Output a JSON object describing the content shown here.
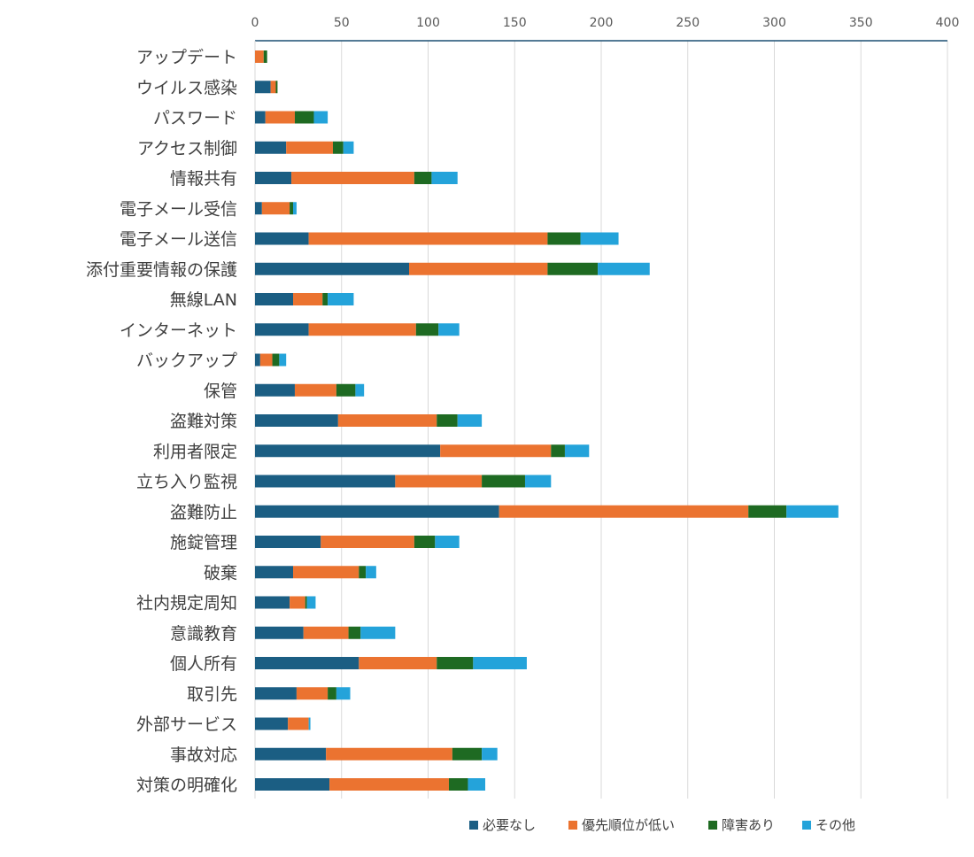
{
  "chart_data": {
    "type": "bar",
    "orientation": "horizontal",
    "stacked": true,
    "title": "",
    "xlabel": "",
    "ylabel": "",
    "xlim": [
      0,
      400
    ],
    "xticks": [
      0,
      50,
      100,
      150,
      200,
      250,
      300,
      350,
      400
    ],
    "grid": true,
    "legend_position": "bottom",
    "categories": [
      "アップデート",
      "ウイルス感染",
      "パスワード",
      "アクセス制御",
      "情報共有",
      "電子メール受信",
      "電子メール送信",
      "添付重要情報の保護",
      "無線LAN",
      "インターネット",
      "バックアップ",
      "保管",
      "盗難対策",
      "利用者限定",
      "立ち入り監視",
      "盗難防止",
      "施錠管理",
      "破棄",
      "社内規定周知",
      "意識教育",
      "個人所有",
      "取引先",
      "外部サービス",
      "事故対応",
      "対策の明確化"
    ],
    "series": [
      {
        "name": "必要なし",
        "color": "#1b5e83",
        "values": [
          0,
          9,
          6,
          18,
          21,
          4,
          31,
          89,
          22,
          31,
          3,
          23,
          48,
          107,
          81,
          141,
          38,
          22,
          20,
          28,
          60,
          24,
          19,
          41,
          43
        ]
      },
      {
        "name": "優先順位が低い",
        "color": "#eb7330",
        "values": [
          5,
          3,
          17,
          27,
          71,
          16,
          138,
          80,
          17,
          62,
          7,
          24,
          57,
          64,
          50,
          144,
          54,
          38,
          9,
          26,
          45,
          18,
          12,
          73,
          69
        ]
      },
      {
        "name": "障害あり",
        "color": "#1e6a22",
        "values": [
          2,
          1,
          11,
          6,
          10,
          2,
          19,
          29,
          3,
          13,
          4,
          11,
          12,
          8,
          25,
          22,
          12,
          4,
          1,
          7,
          21,
          5,
          0,
          17,
          11
        ]
      },
      {
        "name": "その他",
        "color": "#24a3da",
        "values": [
          0,
          0,
          8,
          6,
          15,
          2,
          22,
          30,
          15,
          12,
          4,
          5,
          14,
          14,
          15,
          30,
          14,
          6,
          5,
          20,
          31,
          8,
          1,
          9,
          10
        ]
      }
    ]
  }
}
